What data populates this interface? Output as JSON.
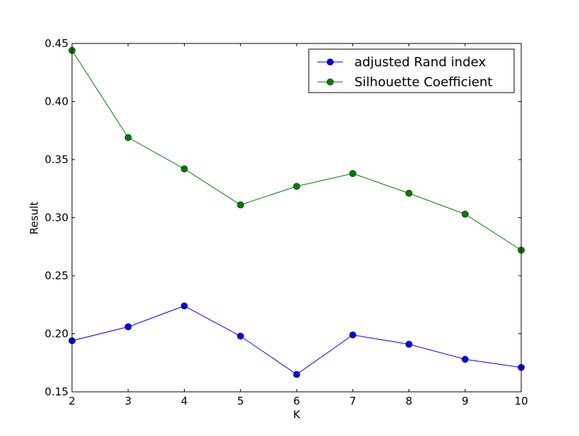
{
  "chart_data": {
    "type": "line",
    "xlabel": "K",
    "ylabel": "Result",
    "xlim": [
      2,
      10
    ],
    "ylim": [
      0.15,
      0.45
    ],
    "x": [
      2,
      3,
      4,
      5,
      6,
      7,
      8,
      9,
      10
    ],
    "xticks": [
      "2",
      "3",
      "4",
      "5",
      "6",
      "7",
      "8",
      "9",
      "10"
    ],
    "yticks": [
      "0.15",
      "0.20",
      "0.25",
      "0.30",
      "0.35",
      "0.40",
      "0.45"
    ],
    "grid": false,
    "legend_position": "top-right",
    "series": [
      {
        "name": "adjusted Rand index",
        "color": "#0000ff",
        "marker": "circle",
        "values": [
          0.194,
          0.206,
          0.224,
          0.198,
          0.165,
          0.199,
          0.191,
          0.178,
          0.171
        ]
      },
      {
        "name": "Silhouette Coefficient",
        "color": "#007f00",
        "marker": "circle",
        "values": [
          0.444,
          0.369,
          0.342,
          0.311,
          0.327,
          0.338,
          0.321,
          0.303,
          0.272
        ]
      }
    ]
  }
}
